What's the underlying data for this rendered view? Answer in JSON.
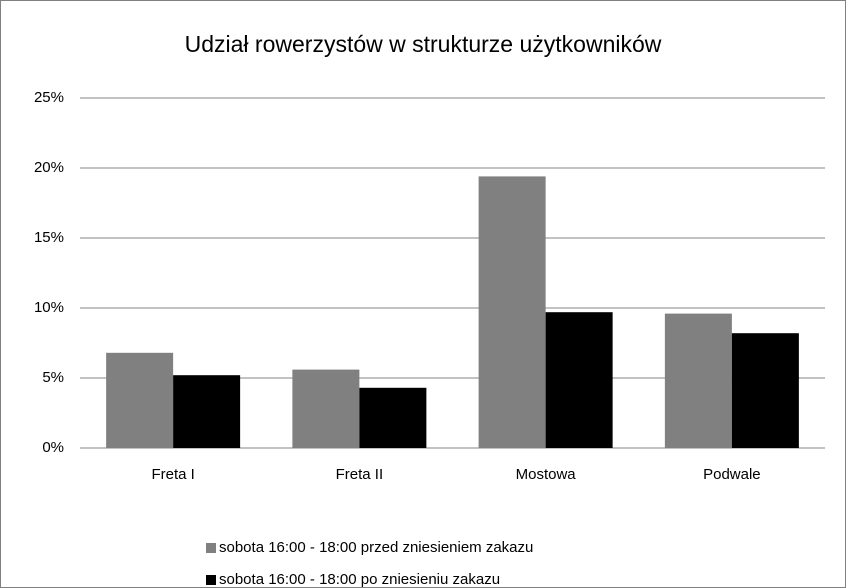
{
  "chart_data": {
    "type": "bar",
    "title": "Udział rowerzystów w strukturze użytkowników",
    "categories": [
      "Freta I",
      "Freta II",
      "Mostowa",
      "Podwale"
    ],
    "series": [
      {
        "name": "sobota 16:00 - 18:00 przed zniesieniem zakazu",
        "color": "#808080",
        "values": [
          6.8,
          5.6,
          19.4,
          9.6
        ]
      },
      {
        "name": "sobota 16:00 - 18:00 po zniesieniu zakazu",
        "color": "#000000",
        "values": [
          5.2,
          4.3,
          9.7,
          8.2
        ]
      }
    ],
    "ylim": [
      0,
      25
    ],
    "yticks": [
      {
        "value": 0,
        "label": "0%"
      },
      {
        "value": 5,
        "label": "5%"
      },
      {
        "value": 10,
        "label": "10%"
      },
      {
        "value": 15,
        "label": "15%"
      },
      {
        "value": 20,
        "label": "20%"
      },
      {
        "value": 25,
        "label": "25%"
      }
    ],
    "grid": true,
    "legend": "bottom"
  }
}
